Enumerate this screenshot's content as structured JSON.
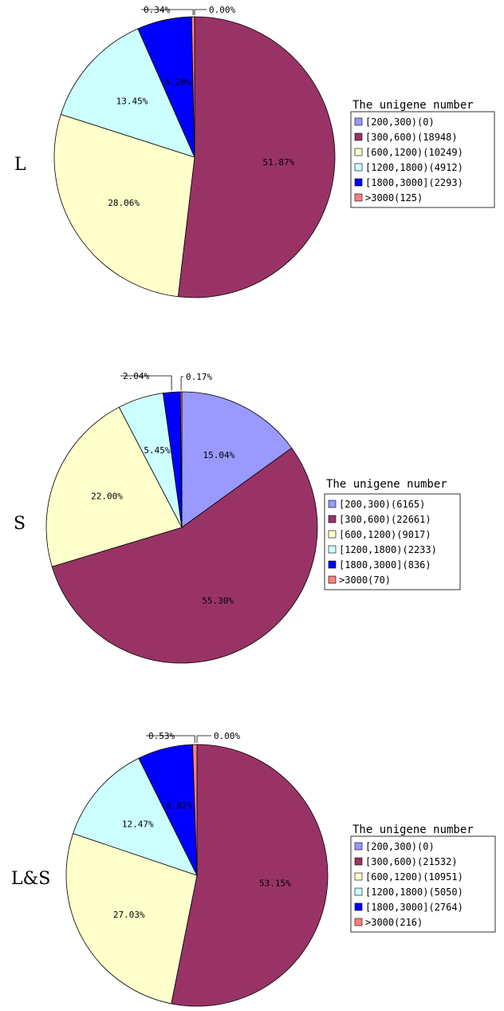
{
  "chart_data": [
    {
      "type": "pie",
      "panel_label": "L",
      "legend_title": "The unigene number",
      "categories": [
        "[200,300)",
        "[300,600)",
        "[600,1200)",
        "[1200,1800)",
        "[1800,3000]",
        ">3000"
      ],
      "legend_labels": [
        "[200,300)(0)",
        "[300,600)(18948)",
        "[600,1200)(10249)",
        "[1200,1800)(4912)",
        "[1800,3000](2293)",
        ">3000(125)"
      ],
      "values": [
        0,
        18948,
        10249,
        4912,
        2293,
        125
      ],
      "percent_labels": [
        "0.00%",
        "51.87%",
        "28.06%",
        "13.45%",
        "6.28%",
        "0.34%"
      ],
      "legend_position": "right",
      "start_angle_deg": 0
    },
    {
      "type": "pie",
      "panel_label": "S",
      "legend_title": "The unigene number",
      "categories": [
        "[200,300)",
        "[300,600)",
        "[600,1200)",
        "[1200,1800)",
        "[1800,3000]",
        ">3000"
      ],
      "legend_labels": [
        "[200,300)(6165)",
        "[300,600)(22661)",
        "[600,1200)(9017)",
        "[1200,1800)(2233)",
        "[1800,3000](836)",
        ">3000(70)"
      ],
      "values": [
        6165,
        22661,
        9017,
        2233,
        836,
        70
      ],
      "percent_labels": [
        "15.04%",
        "55.30%",
        "22.00%",
        "5.45%",
        "2.04%",
        "0.17%"
      ],
      "legend_position": "right",
      "start_angle_deg": 0
    },
    {
      "type": "pie",
      "panel_label": "L&S",
      "legend_title": "The unigene number",
      "categories": [
        "[200,300)",
        "[300,600)",
        "[600,1200)",
        "[1200,1800)",
        "[1800,3000]",
        ">3000"
      ],
      "legend_labels": [
        "[200,300)(0)",
        "[300,600)(21532)",
        "[600,1200)(10951)",
        "[1200,1800)(5050)",
        "[1800,3000](2764)",
        ">3000(216)"
      ],
      "values": [
        0,
        21532,
        10951,
        5050,
        2764,
        216
      ],
      "percent_labels": [
        "0.00%",
        "53.15%",
        "27.03%",
        "12.47%",
        "6.82%",
        "0.53%"
      ],
      "legend_position": "right",
      "start_angle_deg": 0
    }
  ],
  "colors": {
    "[200,300)": "#9999ff",
    "[300,600)": "#993366",
    "[600,1200)": "#ffffcc",
    "[1200,1800)": "#ccffff",
    "[1800,3000]": "#0000ff",
    ">3000": "#ff8080"
  }
}
